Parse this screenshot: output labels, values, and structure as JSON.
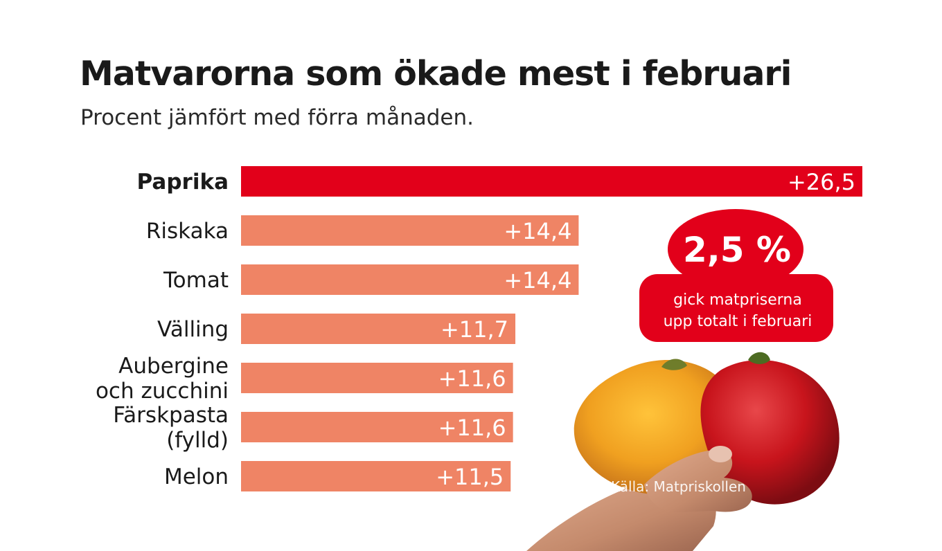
{
  "title": "Matvarorna som ökade mest i februari",
  "subtitle": "Procent jämfört med förra månaden.",
  "chart_data": {
    "type": "bar",
    "orientation": "horizontal",
    "categories": [
      [
        "Paprika"
      ],
      [
        "Riskaka"
      ],
      [
        "Tomat"
      ],
      [
        "Välling"
      ],
      [
        "Aubergine",
        "och zucchini"
      ],
      [
        "Färskpasta",
        "(fylld)"
      ],
      [
        "Melon"
      ]
    ],
    "values": [
      26.5,
      14.4,
      14.4,
      11.7,
      11.6,
      11.6,
      11.5
    ],
    "value_labels": [
      "+26,5",
      "+14,4",
      "+14,4",
      "+11,7",
      "+11,6",
      "+11,6",
      "+11,5"
    ],
    "highlight_index": 0,
    "xlim": [
      0,
      26.5
    ],
    "grid": false,
    "colors": {
      "highlight": "#e2001a",
      "bar": "#ef8465",
      "value_text": "#ffffff"
    }
  },
  "callout": {
    "value": "2,5 %",
    "text_lines": [
      "gick matpriserna",
      "upp totalt i februari"
    ],
    "color": "#e2001a"
  },
  "source": "Källa: Matpriskollen",
  "image": {
    "subject": "hand-holding-peppers",
    "colors": {
      "yellow_pepper": "#f0a020",
      "red_pepper": "#c8141c",
      "skin": "#c99074"
    }
  }
}
